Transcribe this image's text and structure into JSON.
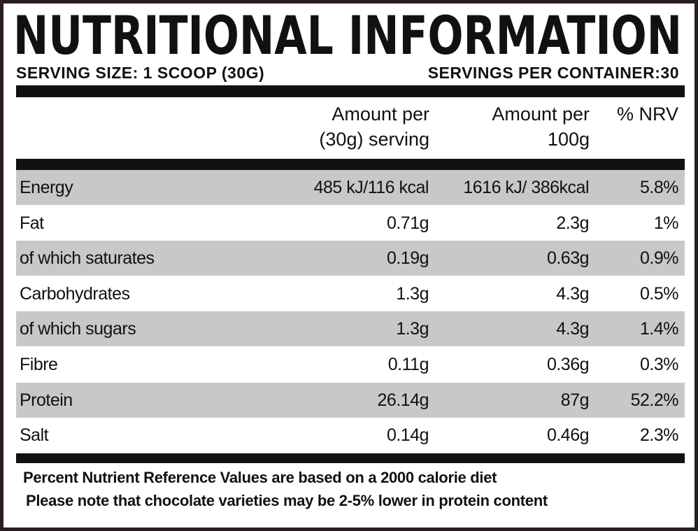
{
  "header": {
    "title": "NUTRITIONAL INFORMATION",
    "serving_size": "SERVING SIZE: 1 SCOOP (30G)",
    "servings_per_container": "SERVINGS PER CONTAINER:30"
  },
  "table": {
    "columns": [
      "Amount per (30g) serving",
      "Amount per 100g",
      "% NRV"
    ],
    "rows": [
      [
        "Energy",
        "485 kJ/116 kcal",
        "1616 kJ/ 386kcal",
        "5.8%"
      ],
      [
        "Fat",
        "0.71g",
        "2.3g",
        "1%"
      ],
      [
        "of which saturates",
        "0.19g",
        "0.63g",
        "0.9%"
      ],
      [
        "Carbohydrates",
        "1.3g",
        "4.3g",
        "0.5%"
      ],
      [
        "of which sugars",
        "1.3g",
        "4.3g",
        "1.4%"
      ],
      [
        "Fibre",
        "0.11g",
        "0.36g",
        "0.3%"
      ],
      [
        "Protein",
        "26.14g",
        "87g",
        "52.2%"
      ],
      [
        "Salt",
        "0.14g",
        "0.46g",
        "2.3%"
      ]
    ]
  },
  "footer": {
    "lines": [
      "Percent Nutrient Reference Values are based on a 2000 calorie diet",
      "Please note that chocolate varieties may be 2-5% lower in protein content"
    ]
  }
}
